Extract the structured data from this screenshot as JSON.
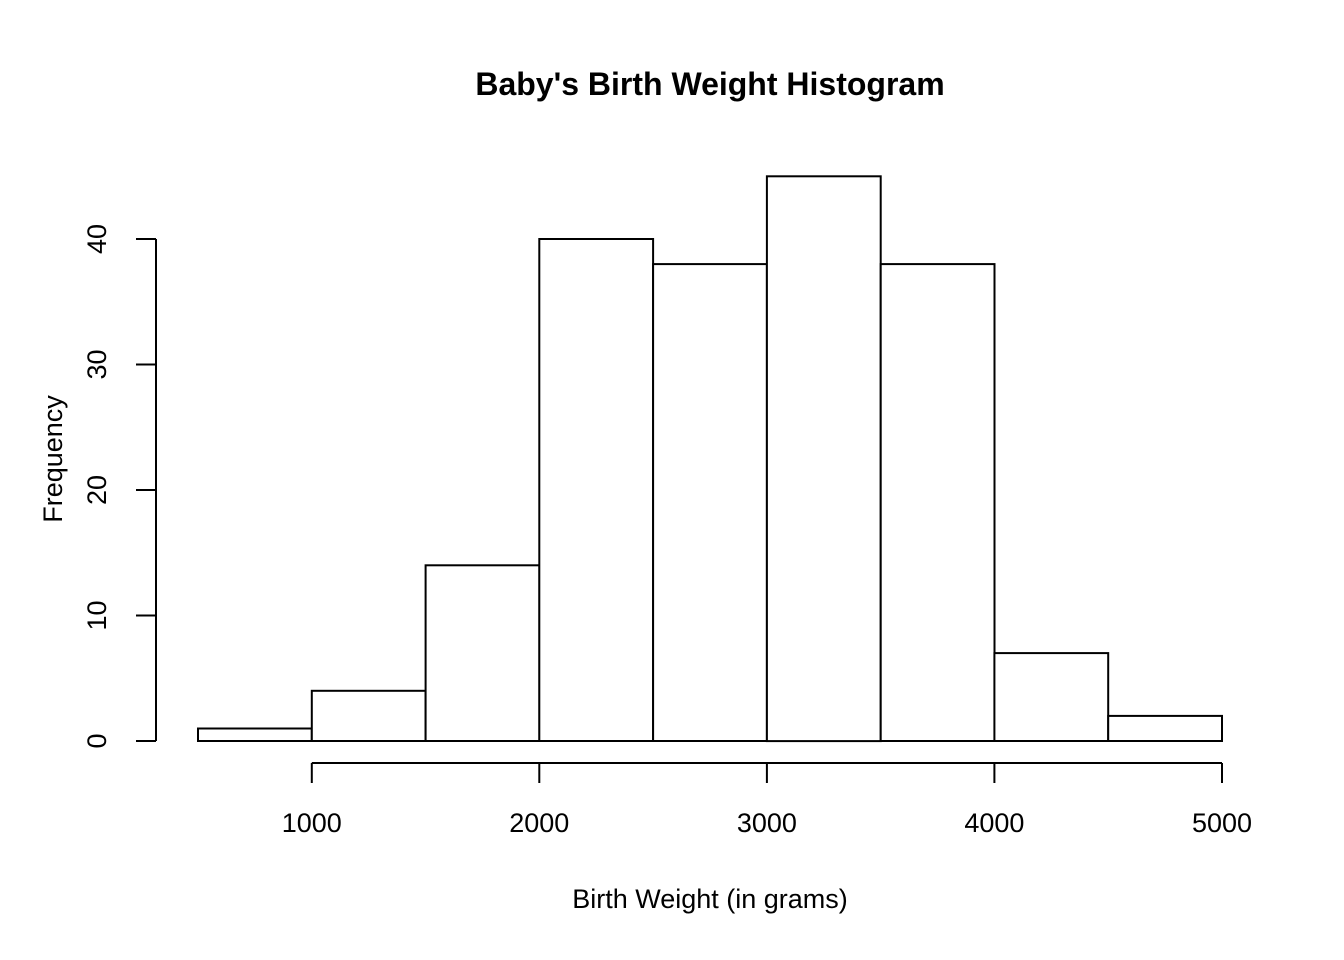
{
  "chart_data": {
    "type": "bar",
    "subtype": "histogram",
    "title": "Baby's Birth Weight Histogram",
    "xlabel": "Birth Weight (in grams)",
    "ylabel": "Frequency",
    "bin_width": 500,
    "bin_edges": [
      500,
      1000,
      1500,
      2000,
      2500,
      3000,
      3500,
      4000,
      4500,
      5000
    ],
    "bins": [
      {
        "range": [
          500,
          1000
        ],
        "count": 1
      },
      {
        "range": [
          1000,
          1500
        ],
        "count": 4
      },
      {
        "range": [
          1500,
          2000
        ],
        "count": 14
      },
      {
        "range": [
          2000,
          2500
        ],
        "count": 40
      },
      {
        "range": [
          2500,
          3000
        ],
        "count": 38
      },
      {
        "range": [
          3000,
          3500
        ],
        "count": 45
      },
      {
        "range": [
          3500,
          4000
        ],
        "count": 38
      },
      {
        "range": [
          4000,
          4500
        ],
        "count": 7
      },
      {
        "range": [
          4500,
          5000
        ],
        "count": 2
      }
    ],
    "counts": [
      1,
      4,
      14,
      40,
      38,
      45,
      38,
      7,
      2
    ],
    "x_ticks": [
      1000,
      2000,
      3000,
      4000,
      5000
    ],
    "y_ticks": [
      0,
      10,
      20,
      30,
      40
    ],
    "xlim": [
      500,
      5000
    ],
    "ylim": [
      0,
      45
    ],
    "grid": false,
    "legend_position": null,
    "bar_fill": "#ffffff",
    "bar_border": "#000000",
    "axis_color": "#000000",
    "text_color": "#000000",
    "background": "#ffffff"
  }
}
